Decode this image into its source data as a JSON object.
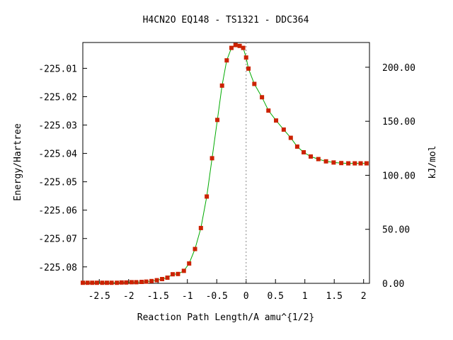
{
  "chart_data": {
    "type": "line",
    "title": "H4CN2O   EQ148 - TS1321 - DDC364",
    "xlabel": "Reaction Path Length/A amu^{1/2}",
    "ylabel": "Energy/Hartree",
    "ylabel_right": "kJ/mol",
    "xlim": [
      -2.78,
      2.1
    ],
    "ylim": [
      -225.0858,
      -225.0009
    ],
    "ylim_right_kjmol": [
      0.0,
      222.9
    ],
    "x_ticks": [
      "-2.5",
      "-2",
      "-1.5",
      "-1",
      "-0.5",
      "0",
      "0.5",
      "1",
      "1.5",
      "2"
    ],
    "x_tick_values": [
      -2.5,
      -2,
      -1.5,
      -1,
      -0.5,
      0,
      0.5,
      1,
      1.5,
      2
    ],
    "y_ticks": [
      "-225.01",
      "-225.02",
      "-225.03",
      "-225.04",
      "-225.05",
      "-225.06",
      "-225.07",
      "-225.08"
    ],
    "y_tick_values": [
      -225.01,
      -225.02,
      -225.03,
      -225.04,
      -225.05,
      -225.06,
      -225.07,
      -225.08
    ],
    "y_right_ticks": [
      "0.00",
      "50.00",
      "100.00",
      "150.00",
      "200.00"
    ],
    "y_right_tick_values": [
      0,
      50,
      100,
      150,
      200
    ],
    "ts_x": 0.0,
    "colors": {
      "curve": "#00aa00",
      "marker": "#cc2200",
      "ts_line": "#888888"
    },
    "series": [
      {
        "x": [
          -2.78,
          -2.7,
          -2.62,
          -2.54,
          -2.45,
          -2.37,
          -2.29,
          -2.2,
          -2.12,
          -2.04,
          -1.95,
          -1.87,
          -1.78,
          -1.7,
          -1.61,
          -1.52,
          -1.43,
          -1.34,
          -1.25,
          -1.16,
          -1.06,
          -0.97,
          -0.87,
          -0.77,
          -0.67,
          -0.58,
          -0.49,
          -0.41,
          -0.33,
          -0.25,
          -0.18,
          -0.11,
          -0.05,
          0.0,
          0.04,
          0.14,
          0.27,
          0.38,
          0.51,
          0.64,
          0.76,
          0.87,
          0.98,
          1.1,
          1.23,
          1.36,
          1.49,
          1.62,
          1.74,
          1.85,
          1.95,
          2.05
        ],
        "y": [
          -225.0856,
          -225.0856,
          -225.0856,
          -225.0856,
          -225.0856,
          -225.0856,
          -225.0856,
          -225.0856,
          -225.0855,
          -225.0855,
          -225.0854,
          -225.0854,
          -225.0853,
          -225.0852,
          -225.085,
          -225.0847,
          -225.0843,
          -225.0838,
          -225.0826,
          -225.0825,
          -225.0814,
          -225.0788,
          -225.0737,
          -225.0663,
          -225.0552,
          -225.0417,
          -225.0282,
          -225.0161,
          -225.0072,
          -225.0028,
          -225.0018,
          -225.0021,
          -225.0028,
          -225.0062,
          -225.0101,
          -225.0155,
          -225.0202,
          -225.0249,
          -225.0284,
          -225.0316,
          -225.0345,
          -225.0376,
          -225.0396,
          -225.0411,
          -225.042,
          -225.0428,
          -225.0432,
          -225.0434,
          -225.0435,
          -225.0435,
          -225.0435,
          -225.0435
        ]
      }
    ]
  }
}
